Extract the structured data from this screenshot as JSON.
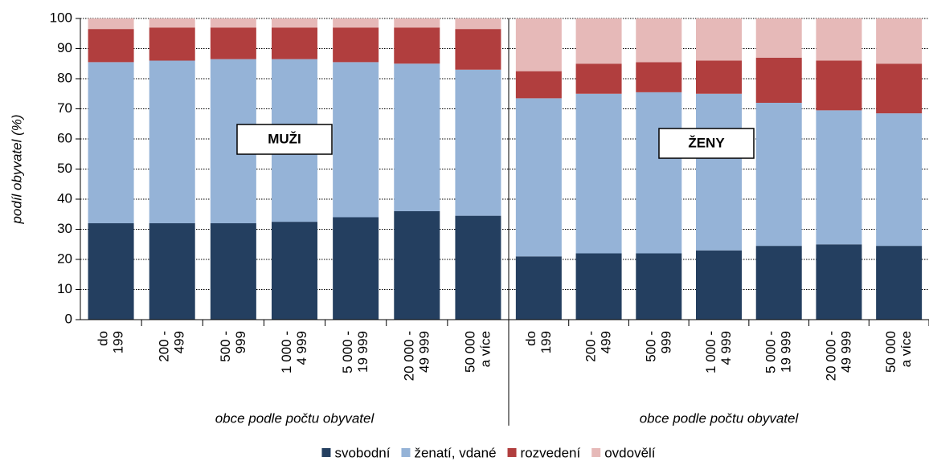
{
  "chart_data": {
    "type": "bar",
    "stacked": true,
    "ylabel": "podíl obyvatel (%)",
    "ylim": [
      0,
      100
    ],
    "yticks": [
      0,
      10,
      20,
      30,
      40,
      50,
      60,
      70,
      80,
      90,
      100
    ],
    "grid": true,
    "legend": "bottom",
    "series": [
      {
        "name": "svobodní",
        "color": "#243f60"
      },
      {
        "name": "ženatí, vdané",
        "color": "#95b3d7"
      },
      {
        "name": "rozvedení",
        "color": "#b13e3e"
      },
      {
        "name": "ovdovělí",
        "color": "#e6b9b8"
      }
    ],
    "panels": [
      {
        "label": "MUŽI",
        "xlabel": "obce podle počtu obyvatel",
        "categories": [
          [
            "do",
            "199"
          ],
          [
            "200 -",
            "499"
          ],
          [
            "500 -",
            "999"
          ],
          [
            "1 000 -",
            "4 999"
          ],
          [
            "5 000 -",
            "19 999"
          ],
          [
            "20 000 -",
            "49 999"
          ],
          [
            "50 000",
            "a více"
          ]
        ],
        "values": [
          [
            32,
            32,
            32,
            32.5,
            34,
            36,
            34.5
          ],
          [
            53.5,
            54,
            54.5,
            54,
            51.5,
            49,
            48.5
          ],
          [
            11,
            11,
            10.5,
            10.5,
            11.5,
            12,
            13.5
          ],
          [
            3.5,
            3,
            3,
            3,
            3,
            3,
            3.5
          ]
        ]
      },
      {
        "label": "ŽENY",
        "xlabel": "obce podle počtu obyvatel",
        "categories": [
          [
            "do",
            "199"
          ],
          [
            "200 -",
            "499"
          ],
          [
            "500 -",
            "999"
          ],
          [
            "1 000 -",
            "4 999"
          ],
          [
            "5 000 -",
            "19 999"
          ],
          [
            "20 000 -",
            "49 999"
          ],
          [
            "50 000",
            "a více"
          ]
        ],
        "values": [
          [
            21,
            22,
            22,
            23,
            24.5,
            25,
            24.5
          ],
          [
            52.5,
            53,
            53.5,
            52,
            47.5,
            44.5,
            44
          ],
          [
            9,
            10,
            10,
            11,
            15,
            16.5,
            16.5
          ],
          [
            17.5,
            15,
            14.5,
            14,
            13,
            14,
            15
          ]
        ]
      }
    ]
  }
}
